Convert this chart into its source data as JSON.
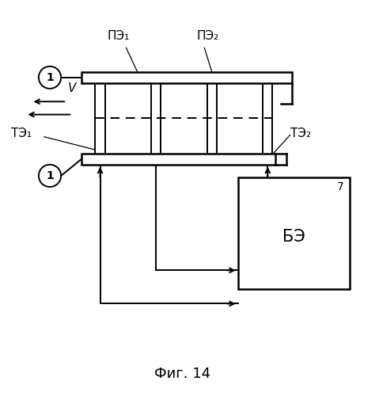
{
  "bg_color": "#ffffff",
  "line_color": "#000000",
  "fig_width": 4.79,
  "fig_height": 5.0,
  "dpi": 100,
  "labels": {
    "PE1": "ПЭ₁",
    "PE2": "ПЭ₂",
    "TE1": "ТЭ₁",
    "TE2": "ТЭ₂",
    "circle_label": "1",
    "v_label": "V",
    "box_label": "БЭ",
    "box_number": "7",
    "caption": "Фиг. 14"
  }
}
